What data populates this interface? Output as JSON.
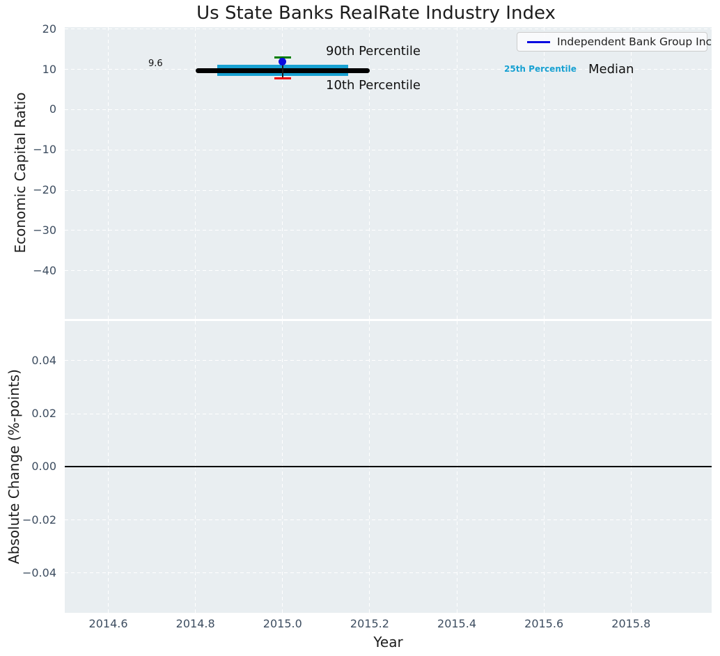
{
  "title": "Us State Banks RealRate Industry Index",
  "legend": {
    "items": [
      {
        "label": "Independent Bank Group Inc",
        "color": "#0a0ae0"
      }
    ]
  },
  "annotations": {
    "p90_label": "90th Percentile",
    "p10_label": "10th Percentile",
    "p25_label": "25th Percentile",
    "median_label": "Median",
    "median_value": "9.6"
  },
  "colors": {
    "plot_background": "#e9eef1",
    "grid": "#ffffff",
    "tick_label": "#3d4d60",
    "text": "#1c1c1c",
    "company_blue": "#0a0ae0",
    "percentile_cyan": "#18a1d2",
    "median_black": "#000000",
    "p90_green": "#007d00",
    "p10_red": "#ee0000",
    "zero_line": "#000000"
  },
  "axes": {
    "top": {
      "ylabel": "Economic Capital Ratio",
      "yticks": [
        {
          "value": 20,
          "label": "20"
        },
        {
          "value": 10,
          "label": "10"
        },
        {
          "value": 0,
          "label": "0"
        },
        {
          "value": -10,
          "label": "−10"
        },
        {
          "value": -20,
          "label": "−20"
        },
        {
          "value": -30,
          "label": "−30"
        },
        {
          "value": -40,
          "label": "−40"
        }
      ]
    },
    "bottom": {
      "ylabel": "Absolute Change (%-points)",
      "xlabel": "Year",
      "yticks": [
        {
          "value": 0.04,
          "label": "0.04"
        },
        {
          "value": 0.02,
          "label": "0.02"
        },
        {
          "value": 0,
          "label": "0.00"
        },
        {
          "value": -0.02,
          "label": "−0.02"
        },
        {
          "value": -0.04,
          "label": "−0.04"
        }
      ],
      "xticks": [
        {
          "value": 2014.6,
          "label": "2014.6"
        },
        {
          "value": 2014.8,
          "label": "2014.8"
        },
        {
          "value": 2015.0,
          "label": "2015.0"
        },
        {
          "value": 2015.2,
          "label": "2015.2"
        },
        {
          "value": 2015.4,
          "label": "2015.4"
        },
        {
          "value": 2015.6,
          "label": "2015.6"
        },
        {
          "value": 2015.8,
          "label": "2015.8"
        }
      ]
    }
  },
  "chart_data": [
    {
      "type": "scatter",
      "title": "Us State Banks RealRate Industry Index",
      "ylabel": "Economic Capital Ratio",
      "xlabel": "",
      "xlim": [
        2014.5,
        2015.985
      ],
      "ylim": [
        -52,
        20.5
      ],
      "grid": true,
      "legend_position": "upper right",
      "series": [
        {
          "name": "Independent Bank Group Inc",
          "marker": "circle",
          "x": [
            2015.0
          ],
          "y": [
            12.0
          ],
          "color": "#0a0ae0"
        }
      ],
      "industry_percentiles": {
        "year": 2015.0,
        "p10": 7.7,
        "p25": 8.3,
        "median": 9.6,
        "p75": 11.1,
        "p90": 13.0
      },
      "median_value_annotation": {
        "x": 2014.69,
        "y": 9.6,
        "text": "9.6"
      },
      "marks": [
        {
          "kind": "band",
          "name": "iqr-band",
          "x0": 2014.85,
          "x1": 2015.15,
          "y0": 8.3,
          "y1": 11.1,
          "color": "#18a1d2"
        },
        {
          "kind": "hline",
          "name": "median-line",
          "x0": 2014.8,
          "x1": 2015.2,
          "y": 9.6,
          "thickness": 7,
          "color": "#000000",
          "rounded": true
        },
        {
          "kind": "vline",
          "name": "whisker",
          "x": 2015.0,
          "y0": 7.7,
          "y1": 13.0,
          "thickness": 1.5,
          "color": "#1a1a1a"
        },
        {
          "kind": "hline",
          "name": "p90-cap",
          "x0": 2014.981,
          "x1": 2015.019,
          "y": 13.0,
          "thickness": 3,
          "color": "#007d00"
        },
        {
          "kind": "hline",
          "name": "p10-cap",
          "x0": 2014.981,
          "x1": 2015.019,
          "y": 7.7,
          "thickness": 3,
          "color": "#ee0000"
        },
        {
          "kind": "point",
          "name": "company-point",
          "x": 2015.0,
          "y": 12.0,
          "diameter": 11,
          "color": "#0a0ae0"
        }
      ]
    },
    {
      "type": "line",
      "ylabel": "Absolute Change (%-points)",
      "xlabel": "Year",
      "xlim": [
        2014.5,
        2015.985
      ],
      "ylim": [
        -0.055,
        0.0549
      ],
      "grid": true,
      "zero_line": 0.0,
      "series": []
    }
  ]
}
